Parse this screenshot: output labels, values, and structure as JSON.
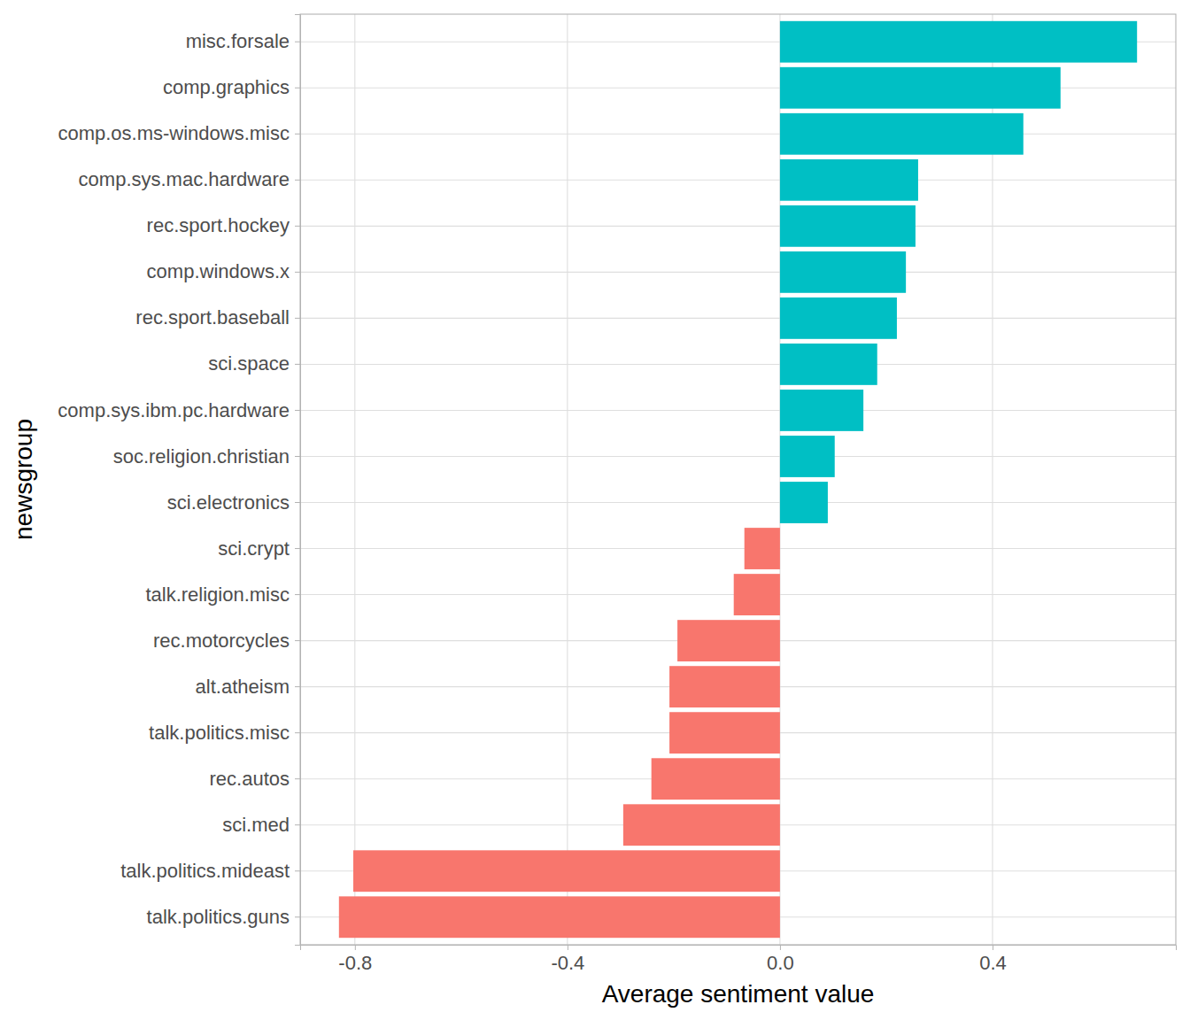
{
  "chart_data": {
    "type": "bar",
    "orientation": "horizontal",
    "x_label": "Average sentiment value",
    "y_label": "newsgroup",
    "categories": [
      "misc.forsale",
      "comp.graphics",
      "comp.os.ms-windows.misc",
      "comp.sys.mac.hardware",
      "rec.sport.hockey",
      "comp.windows.x",
      "rec.sport.baseball",
      "sci.space",
      "comp.sys.ibm.pc.hardware",
      "soc.religion.christian",
      "sci.electronics",
      "sci.crypt",
      "talk.religion.misc",
      "rec.motorcycles",
      "alt.atheism",
      "talk.politics.misc",
      "rec.autos",
      "sci.med",
      "talk.politics.mideast",
      "talk.politics.guns"
    ],
    "values": [
      0.672,
      0.528,
      0.458,
      0.26,
      0.255,
      0.237,
      0.22,
      0.183,
      0.157,
      0.103,
      0.09,
      -0.067,
      -0.087,
      -0.193,
      -0.208,
      -0.208,
      -0.242,
      -0.295,
      -0.803,
      -0.83
    ],
    "colors": [
      "#00BFC4",
      "#00BFC4",
      "#00BFC4",
      "#00BFC4",
      "#00BFC4",
      "#00BFC4",
      "#00BFC4",
      "#00BFC4",
      "#00BFC4",
      "#00BFC4",
      "#00BFC4",
      "#F8766D",
      "#F8766D",
      "#F8766D",
      "#F8766D",
      "#F8766D",
      "#F8766D",
      "#F8766D",
      "#F8766D",
      "#F8766D"
    ],
    "xlim": [
      -0.903,
      0.745
    ],
    "xticks": [
      -0.8,
      -0.4,
      {
        "value": 0,
        "label": "0.0"
      },
      0.4
    ],
    "grid": true
  }
}
